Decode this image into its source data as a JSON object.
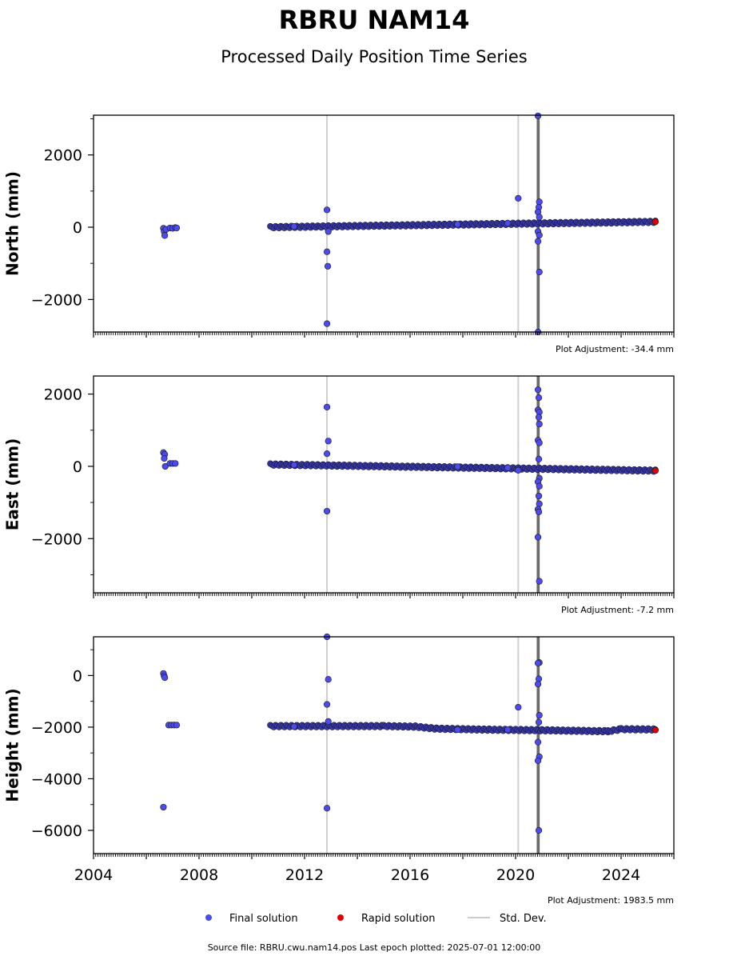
{
  "title": "RBRU NAM14",
  "subtitle": "Processed Daily Position Time Series",
  "footer": "Source file: RBRU.cwu.nam14.pos  Last epoch plotted: 2025-07-01 12:00:00",
  "legend": [
    {
      "label": "Final solution",
      "color": "#4b4bf0"
    },
    {
      "label": "Rapid solution",
      "color": "#e00000"
    },
    {
      "label": "Std. Dev.",
      "color": "#cccccc"
    }
  ],
  "x_tick_labels": [
    "2004",
    "2008",
    "2012",
    "2016",
    "2020",
    "2024"
  ],
  "chart_data": [
    {
      "type": "scatter",
      "ylabel": "North (mm)",
      "adjustment": "Plot Adjustment: -34.4 mm",
      "xlim": [
        2004.0,
        2026.0
      ],
      "ylim": [
        -2900,
        3100
      ],
      "yticks": [
        -2000,
        0,
        2000
      ],
      "ytick_labels": [
        "−2000",
        "0",
        "2000"
      ],
      "series": [
        {
          "name": "Final solution",
          "color": "#4b4bf0",
          "points": [
            [
              2006.65,
              -30
            ],
            [
              2006.68,
              -120
            ],
            [
              2006.7,
              -230
            ],
            [
              2006.75,
              -60
            ],
            [
              2006.9,
              -20
            ],
            [
              2007.0,
              -30
            ],
            [
              2007.1,
              -10
            ],
            [
              2007.15,
              -20
            ],
            [
              2012.85,
              480
            ],
            [
              2012.85,
              -680
            ],
            [
              2012.88,
              -1080
            ],
            [
              2012.9,
              -120
            ],
            [
              2012.85,
              -2670
            ],
            [
              2020.1,
              800
            ],
            [
              2020.85,
              3080
            ],
            [
              2020.9,
              700
            ],
            [
              2020.88,
              550
            ],
            [
              2020.85,
              420
            ],
            [
              2020.9,
              280
            ],
            [
              2020.85,
              -120
            ],
            [
              2020.9,
              -220
            ],
            [
              2020.85,
              -390
            ],
            [
              2020.9,
              -1240
            ],
            [
              2020.85,
              -2900
            ],
            [
              2011.6,
              20
            ],
            [
              2017.8,
              80
            ],
            [
              2019.7,
              110
            ]
          ]
        },
        {
          "name": "Rapid solution",
          "color": "#e00000",
          "points": [
            [
              2025.3,
              150
            ]
          ]
        }
      ],
      "trend": [
        [
          2010.7,
          0
        ],
        [
          2025.3,
          150
        ]
      ]
    },
    {
      "type": "scatter",
      "ylabel": "East (mm)",
      "adjustment": "Plot Adjustment: -7.2 mm",
      "xlim": [
        2004.0,
        2026.0
      ],
      "ylim": [
        -3500,
        2500
      ],
      "yticks": [
        -2000,
        0,
        2000
      ],
      "ytick_labels": [
        "−2000",
        "0",
        "2000"
      ],
      "series": [
        {
          "name": "Final solution",
          "color": "#4b4bf0",
          "points": [
            [
              2006.65,
              380
            ],
            [
              2006.7,
              330
            ],
            [
              2006.68,
              220
            ],
            [
              2006.72,
              0
            ],
            [
              2006.9,
              80
            ],
            [
              2007.0,
              80
            ],
            [
              2007.1,
              80
            ],
            [
              2012.85,
              1640
            ],
            [
              2012.9,
              700
            ],
            [
              2012.85,
              350
            ],
            [
              2012.85,
              -1240
            ],
            [
              2020.1,
              -110
            ],
            [
              2020.85,
              2120
            ],
            [
              2020.88,
              1900
            ],
            [
              2020.85,
              1560
            ],
            [
              2020.9,
              1500
            ],
            [
              2020.88,
              1360
            ],
            [
              2020.9,
              1170
            ],
            [
              2020.85,
              720
            ],
            [
              2020.9,
              650
            ],
            [
              2020.88,
              200
            ],
            [
              2020.9,
              -330
            ],
            [
              2020.85,
              -430
            ],
            [
              2020.9,
              -550
            ],
            [
              2020.88,
              -820
            ],
            [
              2020.9,
              -1040
            ],
            [
              2020.85,
              -1190
            ],
            [
              2020.88,
              -1260
            ],
            [
              2020.85,
              -1960
            ],
            [
              2020.9,
              -3180
            ],
            [
              2011.6,
              40
            ],
            [
              2017.8,
              -10
            ],
            [
              2019.7,
              -40
            ]
          ]
        },
        {
          "name": "Rapid solution",
          "color": "#e00000",
          "points": [
            [
              2025.3,
              -120
            ]
          ]
        }
      ],
      "trend": [
        [
          2010.7,
          50
        ],
        [
          2025.3,
          -120
        ]
      ]
    },
    {
      "type": "scatter",
      "ylabel": "Height (mm)",
      "adjustment": "Plot Adjustment: 1983.5 mm",
      "xlim": [
        2004.0,
        2026.0
      ],
      "ylim": [
        -6900,
        1500
      ],
      "yticks": [
        -6000,
        -4000,
        -2000,
        0
      ],
      "ytick_labels": [
        "−6000",
        "−4000",
        "−2000",
        "0"
      ],
      "series": [
        {
          "name": "Final solution",
          "color": "#4b4bf0",
          "points": [
            [
              2006.65,
              80
            ],
            [
              2006.68,
              -20
            ],
            [
              2006.7,
              -80
            ],
            [
              2006.65,
              -5100
            ],
            [
              2006.85,
              -1920
            ],
            [
              2006.95,
              -1920
            ],
            [
              2007.05,
              -1920
            ],
            [
              2007.15,
              -1920
            ],
            [
              2012.85,
              1500
            ],
            [
              2012.9,
              -150
            ],
            [
              2012.85,
              -1120
            ],
            [
              2012.9,
              -1780
            ],
            [
              2012.85,
              -5140
            ],
            [
              2020.1,
              -1230
            ],
            [
              2020.9,
              500
            ],
            [
              2020.85,
              480
            ],
            [
              2020.88,
              -130
            ],
            [
              2020.85,
              -330
            ],
            [
              2020.9,
              -1540
            ],
            [
              2020.88,
              -1810
            ],
            [
              2020.85,
              -2580
            ],
            [
              2020.9,
              -3150
            ],
            [
              2020.85,
              -3300
            ],
            [
              2020.88,
              -6000
            ],
            [
              2011.6,
              -1980
            ],
            [
              2017.8,
              -2100
            ],
            [
              2019.7,
              -2100
            ]
          ]
        },
        {
          "name": "Rapid solution",
          "color": "#e00000",
          "points": [
            [
              2025.3,
              -2110
            ]
          ]
        }
      ],
      "trend": [
        [
          2010.7,
          -1960
        ],
        [
          2015.0,
          -1960
        ],
        [
          2016.2,
          -1980
        ],
        [
          2017.0,
          -2060
        ],
        [
          2019.0,
          -2100
        ],
        [
          2021.0,
          -2120
        ],
        [
          2023.5,
          -2160
        ],
        [
          2024.0,
          -2080
        ],
        [
          2025.3,
          -2090
        ]
      ]
    }
  ]
}
